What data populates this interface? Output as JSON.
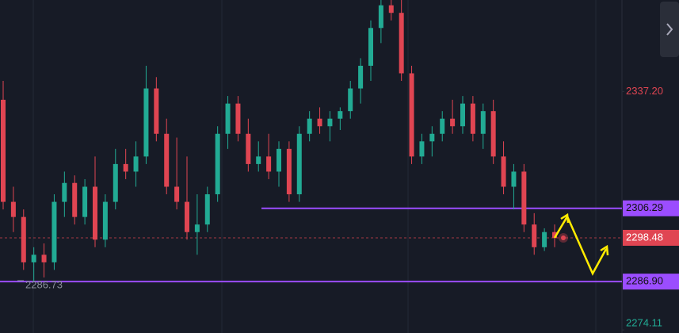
{
  "chart_data": {
    "type": "candlestick",
    "ylim": [
      2273.3,
      2361.4
    ],
    "yticks": [
      {
        "value": 2337.2,
        "label": "2337.20"
      },
      2274.11
    ],
    "up_color": "#22ab94",
    "down_color": "#e04552",
    "open": [
      2335,
      2308,
      2304,
      2292,
      2294,
      2292,
      2308,
      2313,
      2304,
      2312,
      2298,
      2308,
      2318,
      2316,
      2320,
      2338,
      2326,
      2312,
      2308,
      2300,
      2302,
      2310,
      2326,
      2334,
      2326,
      2318,
      2320,
      2316,
      2322,
      2310,
      2326,
      2330,
      2328,
      2330,
      2332,
      2338,
      2344,
      2354,
      2360,
      2358,
      2342,
      2320,
      2324,
      2326,
      2330,
      2328,
      2334,
      2326,
      2332,
      2320,
      2312,
      2316,
      2302,
      2296,
      2300
    ],
    "high": [
      2340,
      2312,
      2306,
      2296,
      2297,
      2310,
      2316,
      2315,
      2314,
      2320,
      2310,
      2322,
      2322,
      2324,
      2344,
      2341,
      2330,
      2325,
      2320,
      2310,
      2312,
      2328,
      2336,
      2336,
      2330,
      2324,
      2326,
      2324,
      2324,
      2328,
      2332,
      2333,
      2332,
      2333,
      2340,
      2346,
      2356,
      2362,
      2362,
      2362,
      2344,
      2326,
      2328,
      2332,
      2335,
      2336,
      2336,
      2334,
      2335,
      2324,
      2318,
      2318,
      2305,
      2301,
      2302
    ],
    "low": [
      2306,
      2300,
      2290,
      2287,
      2288,
      2290,
      2304,
      2302,
      2302,
      2296,
      2296,
      2306,
      2314,
      2312,
      2318,
      2324,
      2310,
      2306,
      2298,
      2294,
      2300,
      2308,
      2322,
      2324,
      2316,
      2316,
      2314,
      2312,
      2308,
      2308,
      2324,
      2326,
      2324,
      2327,
      2330,
      2334,
      2340,
      2350,
      2356,
      2340,
      2318,
      2318,
      2320,
      2324,
      2326,
      2326,
      2324,
      2322,
      2318,
      2310,
      2306,
      2300,
      2294,
      2295,
      2296
    ],
    "close": [
      2308,
      2304,
      2292,
      2294,
      2292,
      2308,
      2313,
      2304,
      2312,
      2298,
      2308,
      2318,
      2316,
      2320,
      2338,
      2326,
      2312,
      2308,
      2300,
      2302,
      2310,
      2326,
      2334,
      2326,
      2318,
      2320,
      2316,
      2322,
      2310,
      2326,
      2330,
      2328,
      2330,
      2332,
      2338,
      2344,
      2354,
      2360,
      2358,
      2342,
      2320,
      2324,
      2326,
      2330,
      2328,
      2334,
      2326,
      2332,
      2320,
      2312,
      2316,
      2302,
      2296,
      2300,
      2298.48
    ],
    "levels": [
      {
        "value": 2306.29,
        "color": "#9b4dff"
      },
      {
        "value": 2298.48,
        "label": "2298.48",
        "color": "#e04552"
      },
      {
        "value": 2286.9,
        "label": "2286.90",
        "color": "#9b4dff"
      }
    ],
    "low_marker": {
      "value": 2286.73,
      "label": "2286.73"
    }
  }
}
